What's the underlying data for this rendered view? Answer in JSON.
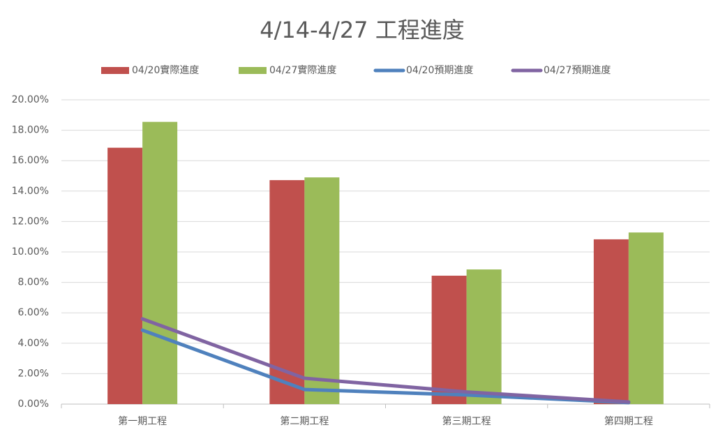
{
  "chart_data": {
    "type": "bar",
    "title": "4/14-4/27 工程進度",
    "categories": [
      "第一期工程",
      "第二期工程",
      "第三期工程",
      "第四期工程"
    ],
    "series": [
      {
        "name": "04/20實際進度",
        "type": "bar",
        "color": "#c0504d",
        "values": [
          16.85,
          14.72,
          8.44,
          10.83
        ]
      },
      {
        "name": "04/27實際進度",
        "type": "bar",
        "color": "#9bbb59",
        "values": [
          18.55,
          14.9,
          8.85,
          11.28
        ]
      },
      {
        "name": "04/20預期進度",
        "type": "line",
        "color": "#4f81bd",
        "values": [
          4.86,
          0.96,
          0.6,
          0.1
        ]
      },
      {
        "name": "04/27預期進度",
        "type": "line",
        "color": "#8064a2",
        "values": [
          5.6,
          1.7,
          0.8,
          0.14
        ]
      }
    ],
    "ylim": [
      0,
      20
    ],
    "yticks": [
      {
        "value": 0,
        "label": "0.00%"
      },
      {
        "value": 2,
        "label": "2.00%"
      },
      {
        "value": 4,
        "label": "4.00%"
      },
      {
        "value": 6,
        "label": "6.00%"
      },
      {
        "value": 8,
        "label": "8.00%"
      },
      {
        "value": 10,
        "label": "10.00%"
      },
      {
        "value": 12,
        "label": "12.00%"
      },
      {
        "value": 14,
        "label": "14.00%"
      },
      {
        "value": 16,
        "label": "16.00%"
      },
      {
        "value": 18,
        "label": "18.00%"
      },
      {
        "value": 20,
        "label": "20.00%"
      }
    ],
    "grid": true,
    "legend": "top"
  }
}
